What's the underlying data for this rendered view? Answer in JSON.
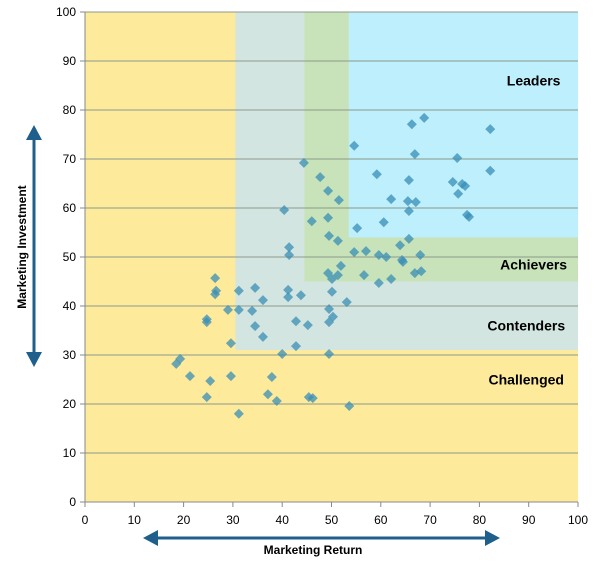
{
  "chart_data": {
    "type": "scatter",
    "title": "",
    "xlabel": "Marketing Return",
    "ylabel": "Marketing Investment",
    "xlim": [
      0,
      100
    ],
    "ylim": [
      0,
      100
    ],
    "x_ticks": [
      "0",
      "10",
      "20",
      "30",
      "40",
      "50",
      "60",
      "70",
      "80",
      "90",
      "100"
    ],
    "y_ticks": [
      "0",
      "10",
      "20",
      "30",
      "40",
      "50",
      "60",
      "70",
      "80",
      "90",
      "100"
    ],
    "grid": "horizontal",
    "marker": "diamond",
    "marker_color": "#3a8db5",
    "regions": [
      {
        "name": "Challenged",
        "x": [
          0,
          100
        ],
        "y": [
          0,
          100
        ],
        "color": "#fdeb9b"
      },
      {
        "name": "Contenders",
        "x": [
          30.5,
          100
        ],
        "y": [
          31,
          100
        ],
        "color": "#d3e5e0"
      },
      {
        "name": "Achievers",
        "x": [
          44.5,
          100
        ],
        "y": [
          45,
          100
        ],
        "color": "#c8e3b9"
      },
      {
        "name": "Leaders",
        "x": [
          53.5,
          100
        ],
        "y": [
          54,
          100
        ],
        "color": "#bdeffd"
      }
    ],
    "region_labels": [
      {
        "text": "Leaders",
        "x": 91,
        "y": 86
      },
      {
        "text": "Achievers",
        "x": 91,
        "y": 48.5
      },
      {
        "text": "Contenders",
        "x": 89.5,
        "y": 36
      },
      {
        "text": "Challenged",
        "x": 89.5,
        "y": 25
      }
    ],
    "points": [
      [
        68.8,
        78.4
      ],
      [
        66.3,
        77.1
      ],
      [
        82.2,
        76.1
      ],
      [
        54.6,
        72.7
      ],
      [
        66.9,
        71.0
      ],
      [
        75.5,
        70.2
      ],
      [
        44.4,
        69.2
      ],
      [
        82.2,
        67.6
      ],
      [
        59.2,
        66.9
      ],
      [
        47.7,
        66.3
      ],
      [
        65.7,
        65.7
      ],
      [
        74.6,
        65.3
      ],
      [
        76.5,
        64.9
      ],
      [
        77.1,
        64.5
      ],
      [
        49.3,
        63.5
      ],
      [
        75.7,
        62.9
      ],
      [
        51.5,
        61.6
      ],
      [
        62.1,
        61.8
      ],
      [
        65.5,
        61.4
      ],
      [
        67.1,
        61.2
      ],
      [
        65.7,
        59.4
      ],
      [
        40.4,
        59.6
      ],
      [
        77.5,
        58.6
      ],
      [
        77.9,
        58.2
      ],
      [
        46.0,
        57.3
      ],
      [
        49.3,
        58.0
      ],
      [
        60.6,
        57.1
      ],
      [
        55.2,
        55.9
      ],
      [
        49.5,
        54.3
      ],
      [
        51.3,
        53.3
      ],
      [
        65.7,
        53.7
      ],
      [
        63.9,
        52.4
      ],
      [
        41.4,
        52.0
      ],
      [
        41.4,
        50.4
      ],
      [
        54.6,
        51.0
      ],
      [
        57.0,
        51.2
      ],
      [
        59.6,
        50.4
      ],
      [
        61.1,
        50.0
      ],
      [
        68.0,
        50.4
      ],
      [
        64.3,
        49.4
      ],
      [
        64.5,
        49.0
      ],
      [
        51.9,
        48.2
      ],
      [
        49.3,
        46.7
      ],
      [
        51.3,
        46.3
      ],
      [
        50.1,
        45.5
      ],
      [
        56.6,
        46.3
      ],
      [
        62.1,
        45.5
      ],
      [
        59.6,
        44.7
      ],
      [
        66.9,
        46.7
      ],
      [
        68.2,
        47.1
      ],
      [
        26.4,
        45.7
      ],
      [
        26.6,
        43.1
      ],
      [
        26.4,
        42.4
      ],
      [
        31.2,
        43.1
      ],
      [
        34.5,
        43.7
      ],
      [
        41.2,
        43.3
      ],
      [
        41.2,
        41.8
      ],
      [
        43.8,
        42.2
      ],
      [
        50.1,
        42.9
      ],
      [
        53.1,
        40.8
      ],
      [
        36.1,
        41.2
      ],
      [
        29.0,
        39.2
      ],
      [
        31.2,
        39.2
      ],
      [
        33.9,
        39.0
      ],
      [
        49.5,
        39.4
      ],
      [
        24.7,
        37.3
      ],
      [
        24.7,
        36.7
      ],
      [
        42.8,
        36.9
      ],
      [
        45.2,
        36.1
      ],
      [
        49.5,
        36.7
      ],
      [
        50.3,
        37.8
      ],
      [
        34.5,
        35.9
      ],
      [
        36.1,
        33.7
      ],
      [
        29.6,
        32.4
      ],
      [
        42.8,
        31.8
      ],
      [
        40.0,
        30.2
      ],
      [
        49.5,
        30.2
      ],
      [
        19.3,
        29.2
      ],
      [
        18.5,
        28.2
      ],
      [
        21.3,
        25.7
      ],
      [
        25.4,
        24.7
      ],
      [
        29.6,
        25.7
      ],
      [
        37.9,
        25.5
      ],
      [
        24.7,
        21.4
      ],
      [
        37.1,
        22.0
      ],
      [
        38.9,
        20.6
      ],
      [
        45.4,
        21.4
      ],
      [
        46.2,
        21.2
      ],
      [
        53.6,
        19.6
      ],
      [
        31.2,
        18.0
      ]
    ]
  }
}
